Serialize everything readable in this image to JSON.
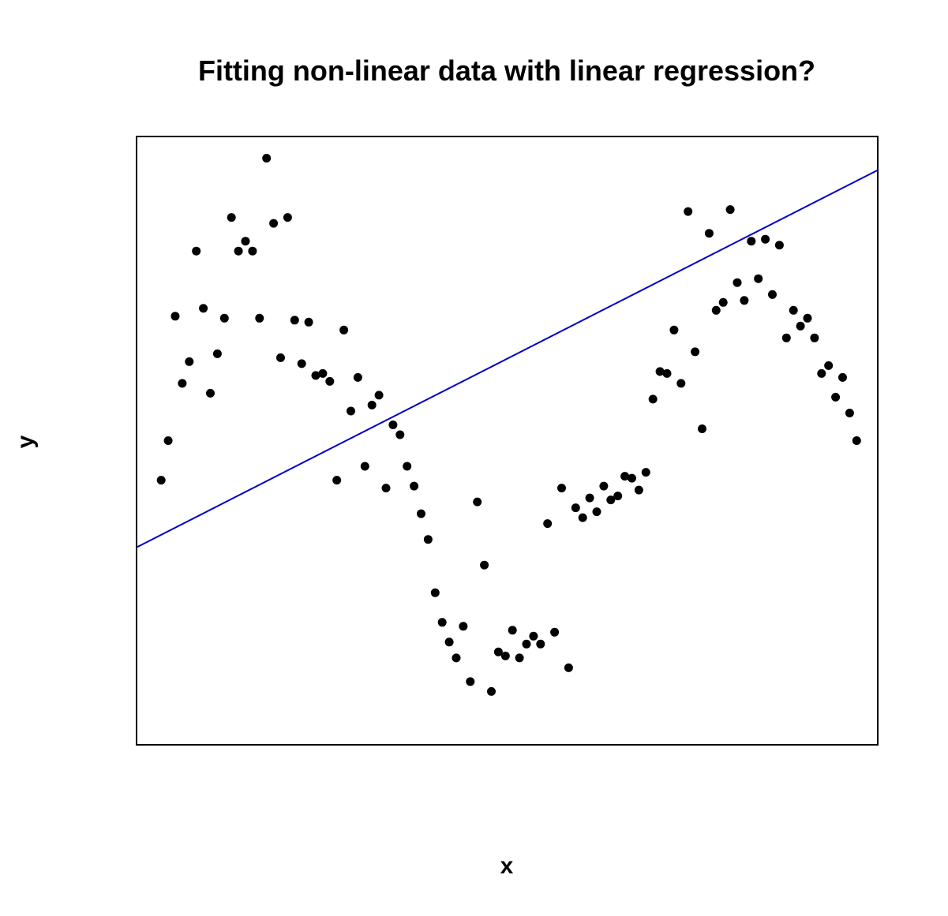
{
  "chart_data": {
    "type": "scatter",
    "title": "Fitting non-linear data with linear regression?",
    "xlabel": "x",
    "ylabel": "y",
    "xlim": [
      -2.5,
      103
    ],
    "ylim": [
      -1.32,
      1.76
    ],
    "axes_ticks_shown": false,
    "grid": false,
    "legend": "none",
    "colors": {
      "points": "#000000",
      "fit_line": "#0000CC",
      "frame": "#000000"
    },
    "series": [
      {
        "type": "scatter",
        "x": [
          1,
          2,
          3,
          4,
          5,
          6,
          7,
          8,
          9,
          10,
          11,
          12,
          13,
          14,
          15,
          16,
          17,
          18,
          19,
          20,
          21,
          22,
          23,
          24,
          25,
          26,
          27,
          28,
          29,
          30,
          31,
          32,
          33,
          34,
          35,
          36,
          37,
          38,
          39,
          40,
          41,
          42,
          43,
          44,
          45,
          46,
          47,
          48,
          49,
          50,
          51,
          52,
          53,
          54,
          55,
          56,
          57,
          58,
          59,
          60,
          61,
          62,
          63,
          64,
          65,
          66,
          67,
          68,
          69,
          70,
          71,
          72,
          73,
          74,
          75,
          76,
          77,
          78,
          79,
          80,
          81,
          82,
          83,
          84,
          85,
          86,
          87,
          88,
          89,
          90,
          91,
          92,
          93,
          94,
          95,
          96,
          97,
          98,
          99,
          100
        ],
        "y": [
          0.02,
          0.22,
          0.85,
          0.51,
          0.62,
          1.18,
          0.89,
          0.46,
          0.66,
          0.84,
          1.35,
          1.18,
          1.23,
          1.18,
          0.84,
          1.65,
          1.32,
          0.64,
          1.35,
          0.83,
          0.61,
          0.82,
          0.55,
          0.56,
          0.52,
          0.02,
          0.78,
          0.37,
          0.54,
          0.09,
          0.4,
          0.45,
          -0.02,
          0.3,
          0.25,
          0.09,
          -0.01,
          -0.15,
          -0.28,
          -0.55,
          -0.7,
          -0.8,
          -0.88,
          -0.72,
          -1.0,
          -0.09,
          -0.41,
          -1.05,
          -0.85,
          -0.87,
          -0.74,
          -0.88,
          -0.81,
          -0.77,
          -0.81,
          -0.2,
          -0.75,
          -0.02,
          -0.93,
          -0.12,
          -0.17,
          -0.07,
          -0.14,
          -0.01,
          -0.08,
          -0.06,
          0.04,
          0.03,
          -0.03,
          0.06,
          0.43,
          0.57,
          0.56,
          0.78,
          0.51,
          1.38,
          0.67,
          0.28,
          1.27,
          0.88,
          0.92,
          1.39,
          1.02,
          0.93,
          1.23,
          1.04,
          1.24,
          0.96,
          1.21,
          0.74,
          0.88,
          0.8,
          0.84,
          0.74,
          0.56,
          0.6,
          0.44,
          0.54,
          0.36,
          0.22
        ]
      },
      {
        "type": "line",
        "name": "",
        "x": [
          -2.5,
          103
        ],
        "y": [
          -0.32,
          1.59
        ]
      }
    ]
  }
}
